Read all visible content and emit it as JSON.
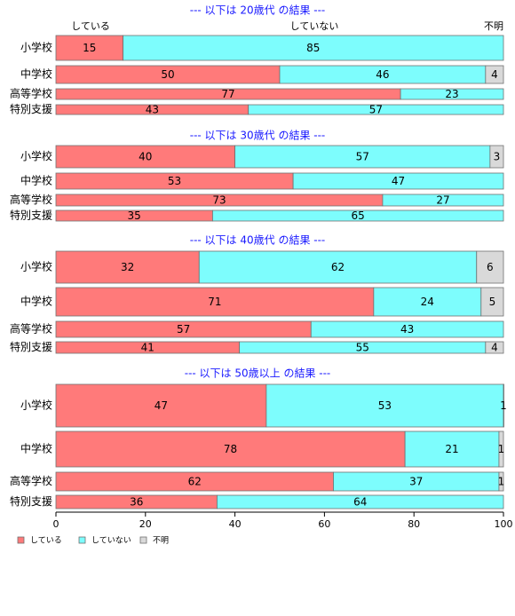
{
  "chart_data": {
    "type": "bar",
    "orientation": "horizontal",
    "stacked": true,
    "xlim": [
      0,
      100
    ],
    "x_ticks": [
      "0",
      "20",
      "40",
      "60",
      "80",
      "100"
    ],
    "colors": {
      "している": "#ff7a7a",
      "していない": "#7dfdfd",
      "不明": "#d9d9d9"
    },
    "top_labels": [
      "している",
      "していない",
      "不明"
    ],
    "legend": {
      "placement": "bottom-left",
      "items": [
        {
          "name": "している",
          "color": "#ff7a7a"
        },
        {
          "name": "していない",
          "color": "#7dfdfd"
        },
        {
          "name": "不明",
          "color": "#d9d9d9"
        }
      ]
    },
    "panels": [
      {
        "title": "--- 以下は 20歳代 の結果 ---",
        "rows": [
          {
            "category": "小学校",
            "values": [
              15,
              85,
              0
            ],
            "labels": [
              "15",
              "85",
              ""
            ]
          },
          {
            "category": "中学校",
            "values": [
              50,
              46,
              4
            ],
            "labels": [
              "50",
              "46",
              "4"
            ]
          },
          {
            "category": "高等学校",
            "values": [
              77,
              23,
              0
            ],
            "labels": [
              "77",
              "23",
              ""
            ]
          },
          {
            "category": "特別支援",
            "values": [
              43,
              57,
              0
            ],
            "labels": [
              "43",
              "57",
              ""
            ]
          }
        ]
      },
      {
        "title": "--- 以下は 30歳代 の結果 ---",
        "rows": [
          {
            "category": "小学校",
            "values": [
              40,
              57,
              3
            ],
            "labels": [
              "40",
              "57",
              "3"
            ]
          },
          {
            "category": "中学校",
            "values": [
              53,
              47,
              0
            ],
            "labels": [
              "53",
              "47",
              ""
            ]
          },
          {
            "category": "高等学校",
            "values": [
              73,
              27,
              0
            ],
            "labels": [
              "73",
              "27",
              ""
            ]
          },
          {
            "category": "特別支援",
            "values": [
              35,
              65,
              0
            ],
            "labels": [
              "35",
              "65",
              ""
            ]
          }
        ]
      },
      {
        "title": "--- 以下は 40歳代 の結果 ---",
        "rows": [
          {
            "category": "小学校",
            "values": [
              32,
              62,
              6
            ],
            "labels": [
              "32",
              "62",
              "6"
            ]
          },
          {
            "category": "中学校",
            "values": [
              71,
              24,
              5
            ],
            "labels": [
              "71",
              "24",
              "5"
            ]
          },
          {
            "category": "高等学校",
            "values": [
              57,
              43,
              0
            ],
            "labels": [
              "57",
              "43",
              ""
            ]
          },
          {
            "category": "特別支援",
            "values": [
              41,
              55,
              4
            ],
            "labels": [
              "41",
              "55",
              "4"
            ]
          }
        ]
      },
      {
        "title": "--- 以下は 50歳以上 の結果 ---",
        "rows": [
          {
            "category": "小学校",
            "values": [
              47,
              53,
              0.5
            ],
            "labels": [
              "47",
              "53",
              "1"
            ]
          },
          {
            "category": "中学校",
            "values": [
              78,
              21,
              1
            ],
            "labels": [
              "78",
              "21",
              "1"
            ]
          },
          {
            "category": "高等学校",
            "values": [
              62,
              37,
              1
            ],
            "labels": [
              "62",
              "37",
              "1"
            ]
          },
          {
            "category": "特別支援",
            "values": [
              36,
              64,
              0
            ],
            "labels": [
              "36",
              "64",
              ""
            ]
          }
        ]
      }
    ]
  }
}
